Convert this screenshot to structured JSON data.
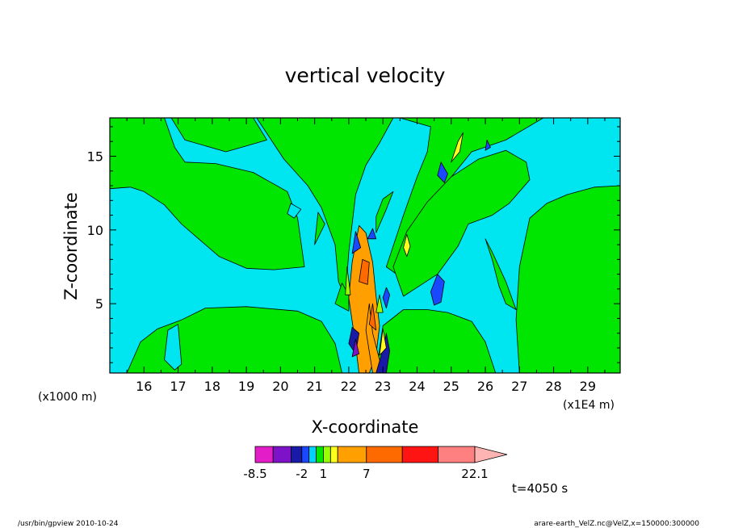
{
  "chart_data": {
    "type": "heatmap",
    "title": "vertical velocity",
    "xlabel": "X-coordinate",
    "ylabel": "Z-coordinate",
    "x_unit": "(x1E4 m)",
    "y_unit": "(x1000 m)",
    "x_ticks": [
      "16",
      "17",
      "18",
      "19",
      "20",
      "21",
      "22",
      "23",
      "24",
      "25",
      "26",
      "27",
      "28",
      "29"
    ],
    "y_ticks": [
      "5",
      "10",
      "15"
    ],
    "xlim": [
      15.0,
      29.95
    ],
    "ylim": [
      0.3,
      17.6
    ],
    "time_label": "t=4050 s",
    "colorbar": {
      "labels": [
        "-8.5",
        "-2",
        "1",
        "7",
        "22.1"
      ],
      "levels": [
        -8.5,
        -6,
        -3.5,
        -2,
        -1,
        0,
        1,
        2,
        3,
        7,
        12,
        17,
        22.1
      ],
      "colors": [
        "#e31ec8",
        "#7d12c8",
        "#1a1aa8",
        "#1a48ff",
        "#00d2ff",
        "#00e600",
        "#98ff00",
        "#ffff1e",
        "#ffa000",
        "#ff6a00",
        "#ff1414",
        "#ff8080",
        "#ffb4b4"
      ]
    },
    "background_level": "#00e6f0",
    "regions": [
      {
        "level": "#00e600",
        "points": [
          [
            15.0,
            12.8
          ],
          [
            15.6,
            12.9
          ],
          [
            16.0,
            12.6
          ],
          [
            16.6,
            11.7
          ],
          [
            17.1,
            10.4
          ],
          [
            17.6,
            9.4
          ],
          [
            18.2,
            8.2
          ],
          [
            19.0,
            7.4
          ],
          [
            19.8,
            7.3
          ],
          [
            20.7,
            7.5
          ],
          [
            20.5,
            10.8
          ],
          [
            20.2,
            12.6
          ],
          [
            19.2,
            13.9
          ],
          [
            18.1,
            14.5
          ],
          [
            17.2,
            14.6
          ],
          [
            16.9,
            15.6
          ],
          [
            16.6,
            17.6
          ],
          [
            15.0,
            17.6
          ]
        ]
      },
      {
        "level": "#00e600",
        "points": [
          [
            16.8,
            17.6
          ],
          [
            17.2,
            16.1
          ],
          [
            18.4,
            15.3
          ],
          [
            19.0,
            15.7
          ],
          [
            19.6,
            16.1
          ],
          [
            19.2,
            17.6
          ]
        ]
      },
      {
        "level": "#00e600",
        "points": [
          [
            19.3,
            17.6
          ],
          [
            20.1,
            14.8
          ],
          [
            20.8,
            13.0
          ],
          [
            21.2,
            11.5
          ],
          [
            21.6,
            9.0
          ],
          [
            21.7,
            6.5
          ],
          [
            21.9,
            5.4
          ],
          [
            22.0,
            8.5
          ],
          [
            22.2,
            12.4
          ],
          [
            22.5,
            14.4
          ],
          [
            22.9,
            15.9
          ],
          [
            23.3,
            17.6
          ]
        ]
      },
      {
        "level": "#00e600",
        "points": [
          [
            23.5,
            17.6
          ],
          [
            24.4,
            17.0
          ],
          [
            24.3,
            15.3
          ],
          [
            24.0,
            13.6
          ],
          [
            23.6,
            11.0
          ],
          [
            23.1,
            7.5
          ],
          [
            23.4,
            7.0
          ],
          [
            23.9,
            10.0
          ],
          [
            24.9,
            13.3
          ],
          [
            25.6,
            15.3
          ],
          [
            26.6,
            16.1
          ],
          [
            27.7,
            17.6
          ]
        ]
      },
      {
        "level": "#00e600",
        "points": [
          [
            23.6,
            5.5
          ],
          [
            24.6,
            7.0
          ],
          [
            25.2,
            8.9
          ],
          [
            25.5,
            10.4
          ],
          [
            26.2,
            11.0
          ],
          [
            26.7,
            11.8
          ],
          [
            27.3,
            13.4
          ],
          [
            27.2,
            14.6
          ],
          [
            26.6,
            15.4
          ],
          [
            25.8,
            14.8
          ],
          [
            25.0,
            13.6
          ],
          [
            24.3,
            11.9
          ],
          [
            23.7,
            9.9
          ],
          [
            23.3,
            7.5
          ]
        ]
      },
      {
        "level": "#00e600",
        "points": [
          [
            29.95,
            13.0
          ],
          [
            29.2,
            12.9
          ],
          [
            28.4,
            12.4
          ],
          [
            27.8,
            11.8
          ],
          [
            27.3,
            10.8
          ],
          [
            27.0,
            7.5
          ],
          [
            26.9,
            3.9
          ],
          [
            27.0,
            0.3
          ],
          [
            29.95,
            0.3
          ]
        ]
      },
      {
        "level": "#00e600",
        "points": [
          [
            26.0,
            9.4
          ],
          [
            26.2,
            8.0
          ],
          [
            26.4,
            6.2
          ],
          [
            26.6,
            5.0
          ],
          [
            26.9,
            4.6
          ],
          [
            26.6,
            6.5
          ],
          [
            26.2,
            8.5
          ]
        ]
      },
      {
        "level": "#00e600",
        "points": [
          [
            15.5,
            0.3
          ],
          [
            15.9,
            2.4
          ],
          [
            16.4,
            3.3
          ],
          [
            17.1,
            3.9
          ],
          [
            17.8,
            4.7
          ],
          [
            19.0,
            4.8
          ],
          [
            20.5,
            4.5
          ],
          [
            21.2,
            3.8
          ],
          [
            21.6,
            2.3
          ],
          [
            21.8,
            0.3
          ]
        ]
      },
      {
        "level": "#00e600",
        "points": [
          [
            22.8,
            0.3
          ],
          [
            23.0,
            3.5
          ],
          [
            23.6,
            4.6
          ],
          [
            24.3,
            4.6
          ],
          [
            24.9,
            4.4
          ],
          [
            25.6,
            3.8
          ],
          [
            26.0,
            2.4
          ],
          [
            26.3,
            0.3
          ]
        ]
      },
      {
        "level": "#00e600",
        "points": [
          [
            21.0,
            9.0
          ],
          [
            21.3,
            10.4
          ],
          [
            21.1,
            11.2
          ]
        ]
      },
      {
        "level": "#00e600",
        "points": [
          [
            22.8,
            9.8
          ],
          [
            23.1,
            11.4
          ],
          [
            23.3,
            12.6
          ],
          [
            23.0,
            12.1
          ],
          [
            22.8,
            10.9
          ]
        ]
      },
      {
        "level": "#00e6f0",
        "points": [
          [
            20.4,
            10.8
          ],
          [
            20.6,
            11.4
          ],
          [
            20.3,
            11.8
          ],
          [
            20.2,
            11.1
          ]
        ]
      },
      {
        "level": "#00e6f0",
        "points": [
          [
            16.7,
            3.2
          ],
          [
            17.0,
            3.6
          ],
          [
            17.1,
            0.9
          ],
          [
            16.9,
            0.5
          ],
          [
            16.6,
            1.2
          ]
        ]
      },
      {
        "level": "#00e6f0",
        "points": [
          [
            22.3,
            0.5
          ],
          [
            22.5,
            1.5
          ],
          [
            22.4,
            0.6
          ]
        ]
      },
      {
        "level": "#00e600",
        "points": [
          [
            21.6,
            5.0
          ],
          [
            21.8,
            6.4
          ],
          [
            22.0,
            5.6
          ],
          [
            22.0,
            4.5
          ]
        ]
      },
      {
        "level": "#ffa000",
        "points": [
          [
            22.0,
            5.4
          ],
          [
            22.1,
            7.8
          ],
          [
            22.3,
            10.3
          ],
          [
            22.5,
            9.8
          ],
          [
            22.7,
            7.8
          ],
          [
            22.8,
            5.5
          ],
          [
            22.9,
            3.5
          ],
          [
            22.8,
            1.5
          ],
          [
            22.6,
            0.3
          ],
          [
            22.3,
            0.3
          ],
          [
            22.2,
            2.2
          ]
        ]
      },
      {
        "level": "#ffa000",
        "points": [
          [
            22.6,
            5.0
          ],
          [
            22.7,
            3.0
          ],
          [
            23.0,
            0.3
          ],
          [
            22.7,
            0.3
          ],
          [
            22.5,
            3.2
          ]
        ]
      },
      {
        "level": "#ff6a00",
        "points": [
          [
            22.3,
            6.5
          ],
          [
            22.4,
            8.0
          ],
          [
            22.6,
            7.8
          ],
          [
            22.55,
            6.3
          ]
        ]
      },
      {
        "level": "#ff6a00",
        "points": [
          [
            22.6,
            3.6
          ],
          [
            22.7,
            5.0
          ],
          [
            22.8,
            3.2
          ]
        ]
      },
      {
        "level": "#1a1aa8",
        "points": [
          [
            22.0,
            2.3
          ],
          [
            22.1,
            3.4
          ],
          [
            22.3,
            3.0
          ],
          [
            22.2,
            1.6
          ]
        ]
      },
      {
        "level": "#7d12c8",
        "points": [
          [
            22.1,
            1.4
          ],
          [
            22.2,
            2.6
          ],
          [
            22.3,
            1.6
          ]
        ]
      },
      {
        "level": "#1a1aa8",
        "points": [
          [
            22.8,
            0.3
          ],
          [
            23.0,
            1.9
          ],
          [
            23.1,
            3.0
          ],
          [
            23.2,
            1.8
          ],
          [
            23.1,
            0.3
          ]
        ]
      },
      {
        "level": "#1a48ff",
        "points": [
          [
            22.1,
            8.4
          ],
          [
            22.2,
            9.9
          ],
          [
            22.35,
            8.8
          ]
        ]
      },
      {
        "level": "#1a48ff",
        "points": [
          [
            22.55,
            9.4
          ],
          [
            22.7,
            10.1
          ],
          [
            22.8,
            9.4
          ]
        ]
      },
      {
        "level": "#1a48ff",
        "points": [
          [
            23.1,
            6.1
          ],
          [
            23.2,
            5.6
          ],
          [
            23.1,
            4.7
          ],
          [
            23.0,
            5.4
          ]
        ]
      },
      {
        "level": "#1a48ff",
        "points": [
          [
            24.4,
            5.8
          ],
          [
            24.6,
            7.0
          ],
          [
            24.8,
            6.5
          ],
          [
            24.7,
            5.1
          ],
          [
            24.5,
            4.9
          ]
        ]
      },
      {
        "level": "#1a48ff",
        "points": [
          [
            26.05,
            16.1
          ],
          [
            26.15,
            15.6
          ],
          [
            26.0,
            15.4
          ]
        ]
      },
      {
        "level": "#1a48ff",
        "points": [
          [
            24.7,
            14.6
          ],
          [
            24.9,
            13.8
          ],
          [
            24.8,
            13.2
          ],
          [
            24.6,
            13.7
          ]
        ]
      },
      {
        "level": "#ffff1e",
        "points": [
          [
            25.0,
            14.6
          ],
          [
            25.2,
            16.0
          ],
          [
            25.35,
            16.6
          ],
          [
            25.25,
            15.3
          ]
        ]
      },
      {
        "level": "#ffff1e",
        "points": [
          [
            23.6,
            8.8
          ],
          [
            23.7,
            9.7
          ],
          [
            23.8,
            8.9
          ],
          [
            23.7,
            8.2
          ]
        ]
      },
      {
        "level": "#ffff1e",
        "points": [
          [
            22.9,
            1.5
          ],
          [
            23.0,
            3.3
          ],
          [
            23.1,
            2.0
          ]
        ]
      },
      {
        "level": "#98ff00",
        "points": [
          [
            21.9,
            5.6
          ],
          [
            21.95,
            7.5
          ],
          [
            22.05,
            5.6
          ]
        ]
      },
      {
        "level": "#98ff00",
        "points": [
          [
            22.8,
            4.4
          ],
          [
            22.9,
            5.6
          ],
          [
            23.0,
            4.4
          ]
        ]
      }
    ]
  },
  "footer": {
    "left": "/usr/bin/gpview   2010-10-24",
    "right": "arare-earth_VelZ.nc@VelZ,x=150000:300000"
  }
}
